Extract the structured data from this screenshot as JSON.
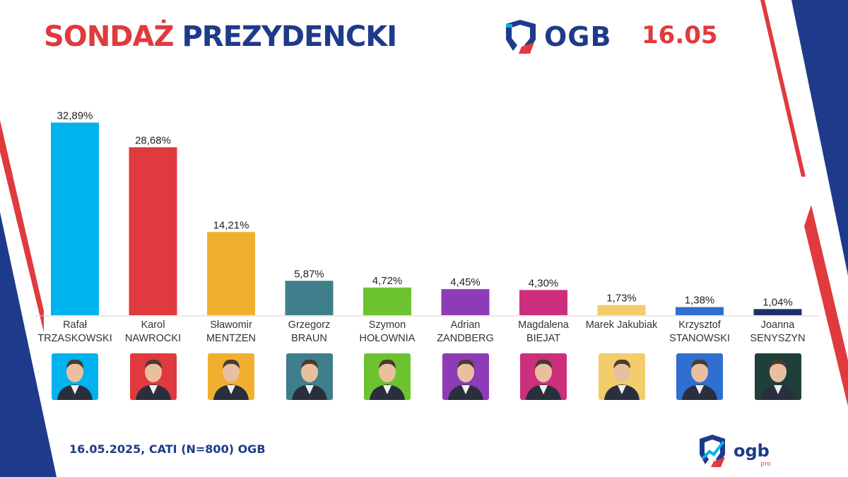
{
  "header": {
    "title_red": "SONDAŻ",
    "title_blue": "PREZYDENCKI",
    "brand": "OGB",
    "date": "16.05"
  },
  "footer": {
    "source": "16.05.2025, CATI (N=800) OGB",
    "brand": "ogb",
    "brand_sub": "pro"
  },
  "chart_data": {
    "type": "bar",
    "title": "SONDAŻ PREZYDENCKI",
    "ylim": [
      0,
      35
    ],
    "grid": false,
    "categories": [
      "Rafał TRZASKOWSKI",
      "Karol NAWROCKI",
      "Sławomir MENTZEN",
      "Grzegorz BRAUN",
      "Szymon HOŁOWNIA",
      "Adrian ZANDBERG",
      "Magdalena BIEJAT",
      "Marek Jakubiak",
      "Krzysztof STANOWSKI",
      "Joanna SENYSZYN"
    ],
    "values": [
      32.89,
      28.68,
      14.21,
      5.87,
      4.72,
      4.45,
      4.3,
      1.73,
      1.38,
      1.04
    ],
    "value_labels": [
      "32,89%",
      "28,68%",
      "14,21%",
      "5,87%",
      "4,72%",
      "4,45%",
      "4,30%",
      "1,73%",
      "1,38%",
      "1,04%"
    ],
    "colors": [
      "#00b2ee",
      "#e03a3e",
      "#f0b02f",
      "#3f7f8c",
      "#6cc32f",
      "#8e3bb8",
      "#cc2f7d",
      "#f3cd6b",
      "#2f6fd1",
      "#1e2f66"
    ]
  },
  "candidates": [
    {
      "first": "Rafał",
      "last": "TRZASKOWSKI",
      "photo_bg": "#00b2ee"
    },
    {
      "first": "Karol",
      "last": "NAWROCKI",
      "photo_bg": "#e03a3e"
    },
    {
      "first": "Sławomir",
      "last": "MENTZEN",
      "photo_bg": "#f0b02f"
    },
    {
      "first": "Grzegorz",
      "last": "BRAUN",
      "photo_bg": "#3f7f8c"
    },
    {
      "first": "Szymon",
      "last": "HOŁOWNIA",
      "photo_bg": "#6cc32f"
    },
    {
      "first": "Adrian",
      "last": "ZANDBERG",
      "photo_bg": "#8e3bb8"
    },
    {
      "first": "Magdalena",
      "last": "BIEJAT",
      "photo_bg": "#cc2f7d"
    },
    {
      "first": "Marek Jakubiak",
      "last": "",
      "photo_bg": "#f3cd6b"
    },
    {
      "first": "Krzysztof",
      "last": "STANOWSKI",
      "photo_bg": "#2f6fd1"
    },
    {
      "first": "Joanna",
      "last": "SENYSZYN",
      "photo_bg": "#1e3f3a"
    }
  ]
}
